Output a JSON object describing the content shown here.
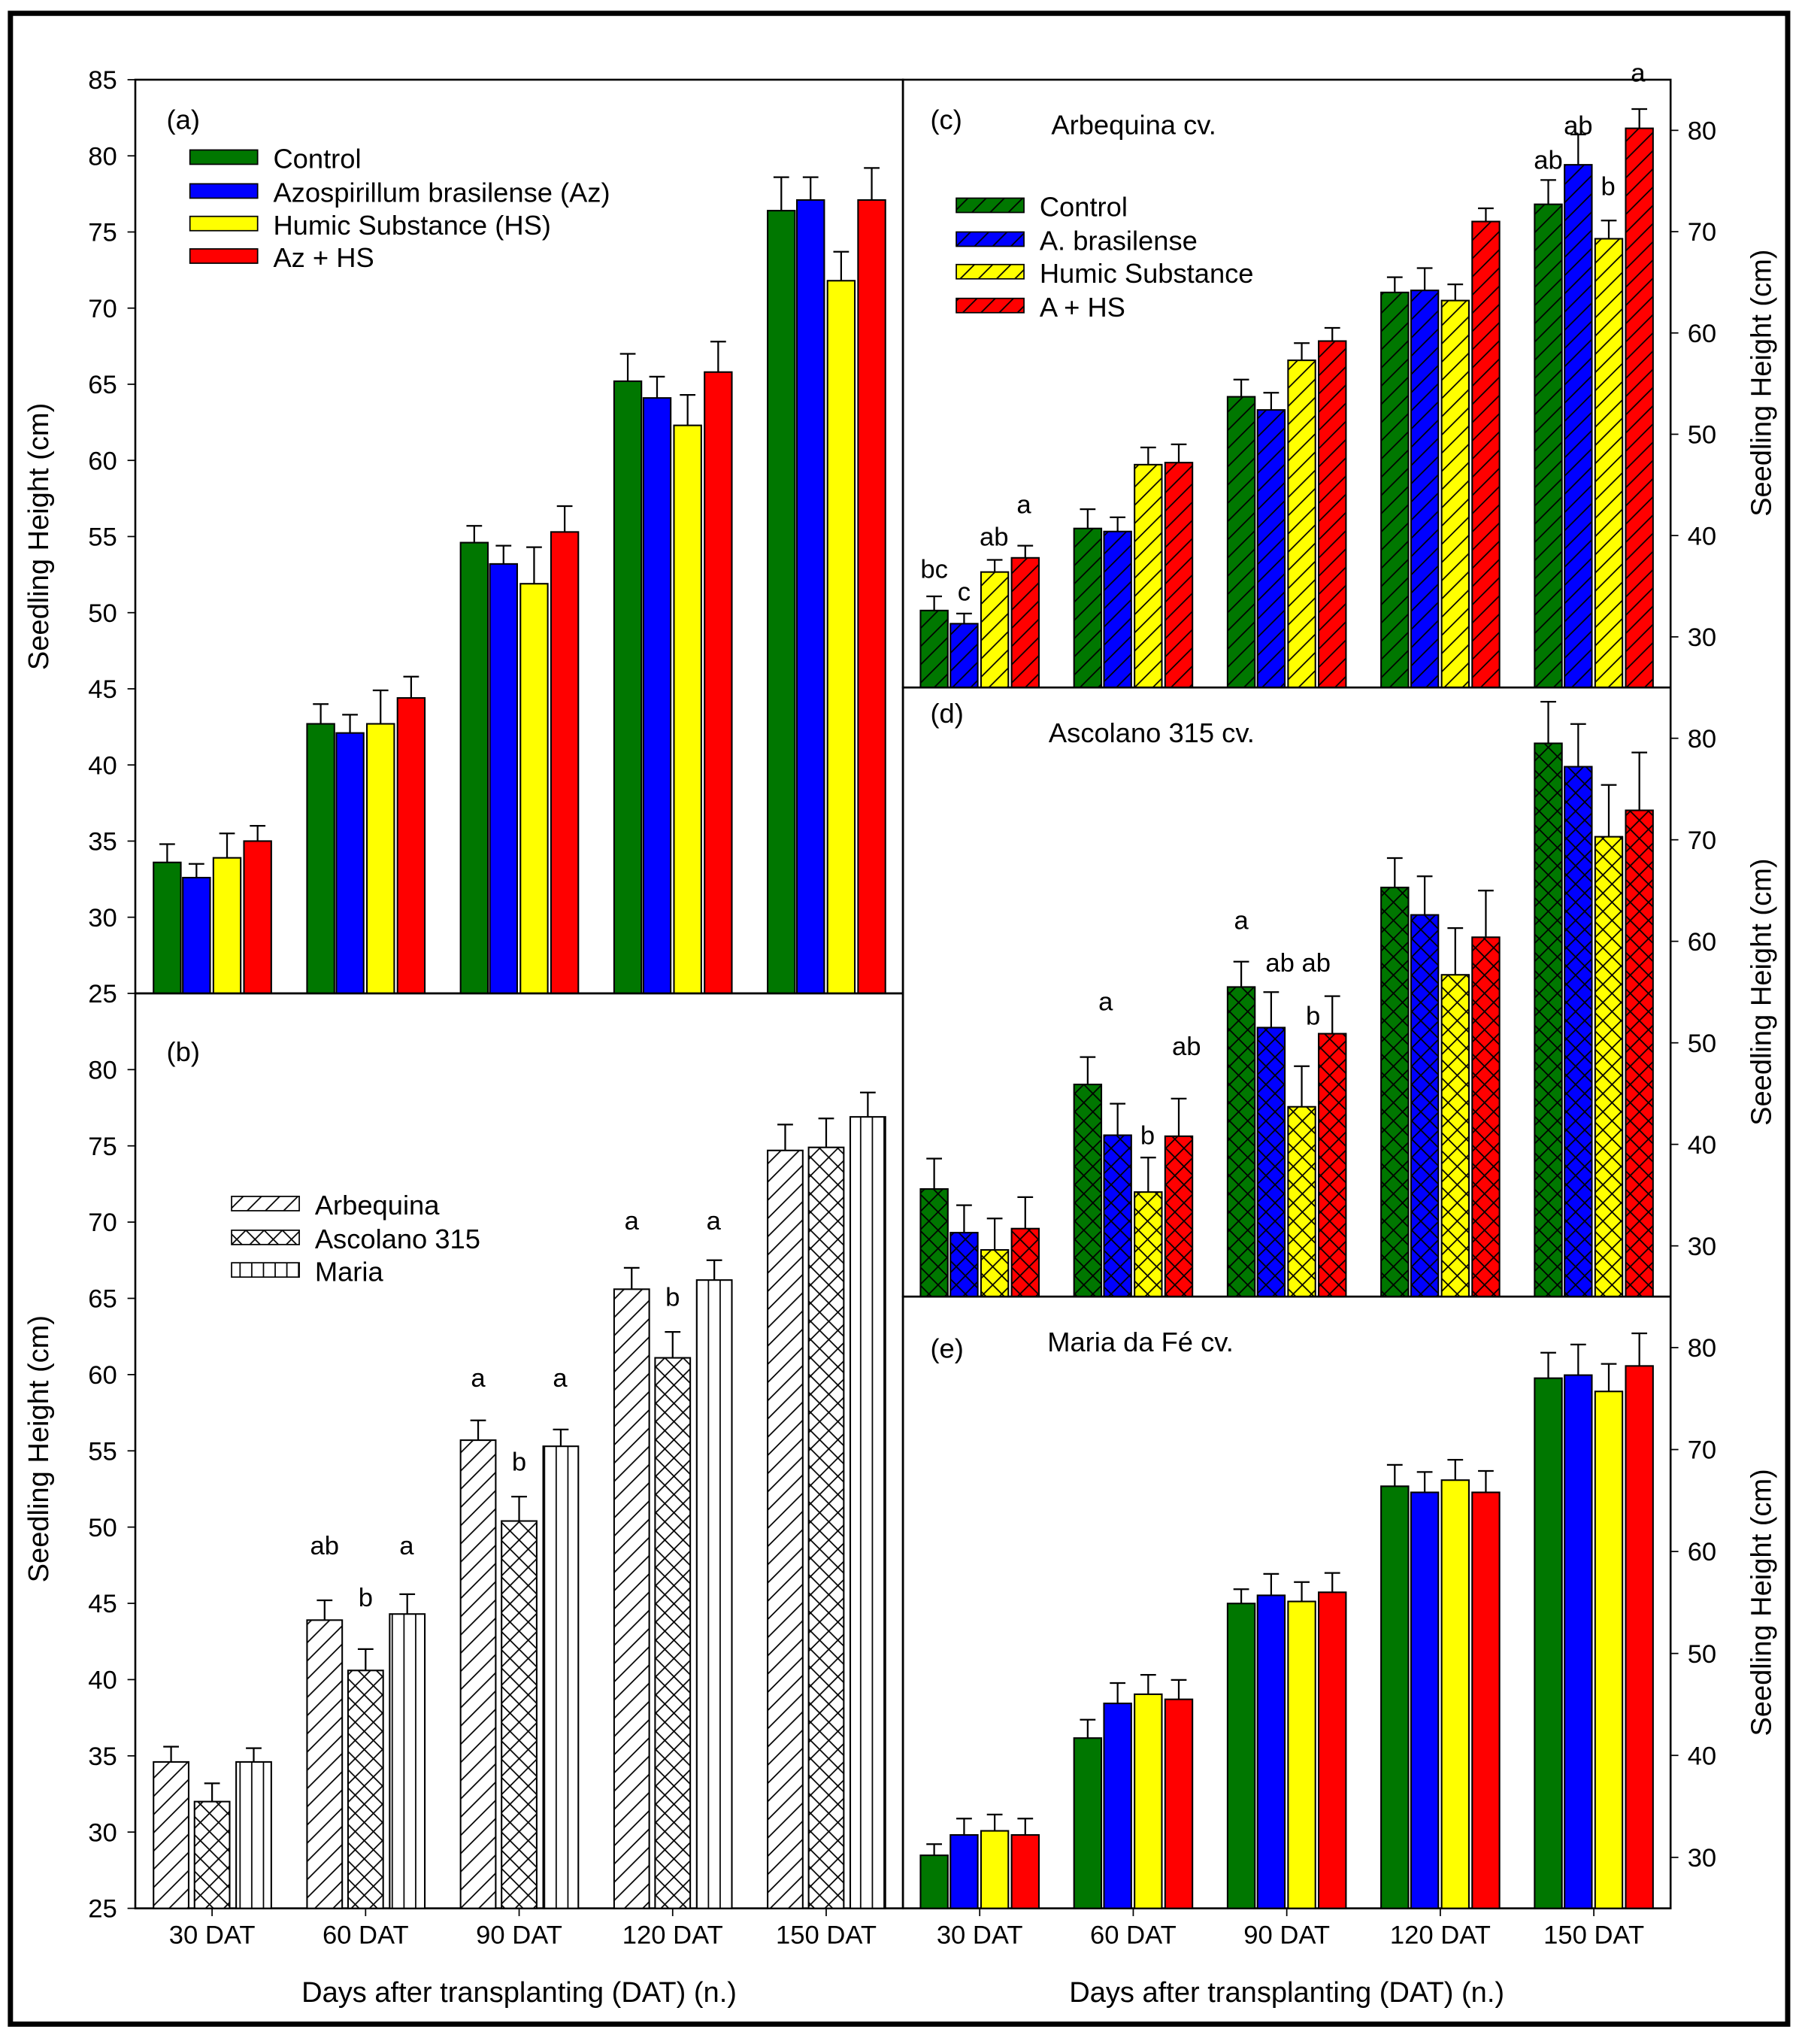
{
  "colors": {
    "control": "#007700",
    "az": "#0000ff",
    "hs": "#ffff00",
    "azhs": "#ff0000"
  },
  "x_axis_title": "Days after transplanting (DAT) (n.)",
  "y_axis_title": "Seedling Height (cm)",
  "chart_data": [
    {
      "id": "a",
      "type": "bar",
      "panel_label": "(a)",
      "title": "",
      "categories": [
        "30 DAT",
        "60 DAT",
        "90 DAT",
        "120 DAT",
        "150 DAT"
      ],
      "ylim": [
        25,
        85
      ],
      "yticks": [
        25,
        30,
        35,
        40,
        45,
        50,
        55,
        60,
        65,
        70,
        75,
        80,
        85
      ],
      "pattern": "solid",
      "ylabel": "Seedling Height (cm)",
      "series": [
        {
          "name": "Control",
          "color": "#007700",
          "values": [
            33.6,
            42.7,
            54.6,
            65.2,
            76.4
          ],
          "errors": [
            1.2,
            1.3,
            1.1,
            1.8,
            2.2
          ]
        },
        {
          "name": "Azospirillum brasilense (Az)",
          "color": "#0000ff",
          "values": [
            32.6,
            42.1,
            53.2,
            64.1,
            77.1
          ],
          "errors": [
            0.9,
            1.2,
            1.2,
            1.4,
            1.5
          ]
        },
        {
          "name": "Humic Substance (HS)",
          "color": "#ffff00",
          "values": [
            33.9,
            42.7,
            51.9,
            62.3,
            71.8
          ],
          "errors": [
            1.6,
            2.2,
            2.4,
            2.0,
            1.9
          ]
        },
        {
          "name": "Az + HS",
          "color": "#ff0000",
          "values": [
            35.0,
            44.4,
            55.3,
            65.8,
            77.1
          ],
          "errors": [
            1.0,
            1.4,
            1.7,
            2.0,
            2.1
          ]
        }
      ],
      "annotations": []
    },
    {
      "id": "b",
      "type": "bar",
      "panel_label": "(b)",
      "title": "",
      "categories": [
        "30 DAT",
        "60 DAT",
        "90 DAT",
        "120 DAT",
        "150 DAT"
      ],
      "ylim": [
        25,
        85
      ],
      "yticks": [
        25,
        30,
        35,
        40,
        45,
        50,
        55,
        60,
        65,
        70,
        75,
        80
      ],
      "pattern": "cultivar",
      "ylabel": "Seedling Height (cm)",
      "xlabel": "Days after transplanting (DAT) (n.)",
      "series": [
        {
          "name": "Arbequina",
          "color": "#ffffff",
          "hatch": "diag",
          "values": [
            34.6,
            43.9,
            55.7,
            65.6,
            74.7
          ],
          "errors": [
            1.0,
            1.3,
            1.3,
            1.4,
            1.7
          ]
        },
        {
          "name": "Ascolano 315",
          "color": "#ffffff",
          "hatch": "cross",
          "values": [
            32.0,
            40.6,
            50.4,
            61.1,
            74.9
          ],
          "errors": [
            1.2,
            1.4,
            1.6,
            1.7,
            1.9
          ]
        },
        {
          "name": "Maria",
          "color": "#ffffff",
          "hatch": "vert",
          "values": [
            34.6,
            44.3,
            55.3,
            66.2,
            76.9
          ],
          "errors": [
            0.9,
            1.3,
            1.1,
            1.3,
            1.6
          ]
        }
      ],
      "annotations": [
        {
          "group": 1,
          "bar": 0,
          "y": 48.2,
          "text": "ab"
        },
        {
          "group": 1,
          "bar": 1,
          "y": 44.8,
          "text": "b"
        },
        {
          "group": 1,
          "bar": 2,
          "y": 48.2,
          "text": "a"
        },
        {
          "group": 2,
          "bar": 0,
          "y": 59.2,
          "text": "a"
        },
        {
          "group": 2,
          "bar": 1,
          "y": 53.7,
          "text": "b"
        },
        {
          "group": 2,
          "bar": 2,
          "y": 59.2,
          "text": "a"
        },
        {
          "group": 3,
          "bar": 0,
          "y": 69.5,
          "text": "a"
        },
        {
          "group": 3,
          "bar": 1,
          "y": 64.5,
          "text": "b"
        },
        {
          "group": 3,
          "bar": 2,
          "y": 69.5,
          "text": "a"
        }
      ]
    },
    {
      "id": "c",
      "type": "bar",
      "panel_label": "(c)",
      "title": "Arbequina cv.",
      "categories": [
        "30 DAT",
        "60 DAT",
        "90 DAT",
        "120 DAT",
        "150 DAT"
      ],
      "ylim": [
        25,
        85
      ],
      "yticks": [
        30,
        40,
        50,
        60,
        70,
        80
      ],
      "pattern": "diag",
      "ylabel": "Seedling Height (cm)",
      "series": [
        {
          "name": "Control",
          "color": "#007700",
          "values": [
            32.6,
            40.7,
            53.7,
            64.0,
            72.7
          ],
          "errors": [
            1.4,
            1.9,
            1.7,
            1.5,
            2.4
          ]
        },
        {
          "name": "A. brasilense",
          "color": "#0000ff",
          "values": [
            31.3,
            40.4,
            52.4,
            64.2,
            76.6
          ],
          "errors": [
            1.0,
            1.4,
            1.7,
            2.2,
            3.0
          ]
        },
        {
          "name": "Humic Substance",
          "color": "#ffff00",
          "values": [
            36.4,
            47.0,
            57.3,
            63.2,
            69.3
          ],
          "errors": [
            1.2,
            1.7,
            1.7,
            1.6,
            1.8
          ]
        },
        {
          "name": "A + HS",
          "color": "#ff0000",
          "values": [
            37.8,
            47.2,
            59.2,
            71.0,
            80.2
          ],
          "errors": [
            1.2,
            1.8,
            1.3,
            1.3,
            1.9
          ]
        }
      ],
      "annotations": [
        {
          "group": 0,
          "bar": 0,
          "y": 35.8,
          "text": "bc"
        },
        {
          "group": 0,
          "bar": 1,
          "y": 33.6,
          "text": "c"
        },
        {
          "group": 0,
          "bar": 2,
          "y": 39.0,
          "text": "ab"
        },
        {
          "group": 0,
          "bar": 3,
          "y": 42.2,
          "text": "a"
        },
        {
          "group": 4,
          "bar": 0,
          "y": 76.2,
          "text": "ab"
        },
        {
          "group": 4,
          "bar": 1,
          "y": 79.6,
          "text": "ab"
        },
        {
          "group": 4,
          "bar": 2,
          "y": 73.6,
          "text": "b"
        },
        {
          "group": 4,
          "bar": 3,
          "y": 84.8,
          "text": "a"
        }
      ]
    },
    {
      "id": "d",
      "type": "bar",
      "panel_label": "(d)",
      "title": "Ascolano 315 cv.",
      "categories": [
        "30 DAT",
        "60 DAT",
        "90 DAT",
        "120 DAT",
        "150 DAT"
      ],
      "ylim": [
        25,
        85
      ],
      "yticks": [
        30,
        40,
        50,
        60,
        70,
        80
      ],
      "pattern": "cross",
      "ylabel": "Seedling Height (cm)",
      "series": [
        {
          "name": "Control",
          "color": "#007700",
          "values": [
            35.6,
            45.9,
            55.5,
            65.3,
            79.5
          ],
          "errors": [
            3.0,
            2.7,
            2.5,
            2.9,
            4.1
          ]
        },
        {
          "name": "A. brasilense",
          "color": "#0000ff",
          "values": [
            31.3,
            40.9,
            51.5,
            62.6,
            77.2
          ],
          "errors": [
            2.7,
            3.1,
            3.5,
            3.8,
            4.2
          ]
        },
        {
          "name": "Humic Substance",
          "color": "#ffff00",
          "values": [
            29.6,
            35.3,
            43.7,
            56.7,
            70.3
          ],
          "errors": [
            3.1,
            3.4,
            4.0,
            4.6,
            5.1
          ]
        },
        {
          "name": "A + HS",
          "color": "#ff0000",
          "values": [
            31.7,
            40.8,
            50.9,
            60.4,
            72.9
          ],
          "errors": [
            3.1,
            3.7,
            3.7,
            4.6,
            5.7
          ]
        }
      ],
      "annotations": [
        {
          "group": 1,
          "bar": 0.6,
          "y": 53.2,
          "text": "a"
        },
        {
          "group": 1,
          "bar": 2,
          "y": 40.0,
          "text": "b"
        },
        {
          "group": 1,
          "bar": 3.3,
          "y": 48.8,
          "text": "ab"
        },
        {
          "group": 2,
          "bar": 0,
          "y": 61.2,
          "text": "a"
        },
        {
          "group": 2,
          "bar": 1.9,
          "y": 57.0,
          "text": "ab ab"
        },
        {
          "group": 2,
          "bar": 2.4,
          "y": 51.8,
          "text": "b"
        }
      ]
    },
    {
      "id": "e",
      "type": "bar",
      "panel_label": "(e)",
      "title": "Maria da Fé cv.",
      "categories": [
        "30 DAT",
        "60 DAT",
        "90 DAT",
        "120 DAT",
        "150 DAT"
      ],
      "ylim": [
        25,
        85
      ],
      "yticks": [
        30,
        40,
        50,
        60,
        70,
        80
      ],
      "pattern": "solid",
      "ylabel": "Seedling Height (cm)",
      "xlabel": "Days after transplanting (DAT) (n.)",
      "series": [
        {
          "name": "Control",
          "color": "#007700",
          "values": [
            30.2,
            41.7,
            54.9,
            66.4,
            77.0
          ],
          "errors": [
            1.1,
            1.8,
            1.4,
            2.1,
            2.5
          ]
        },
        {
          "name": "A. brasilense",
          "color": "#0000ff",
          "values": [
            32.2,
            45.1,
            55.7,
            65.8,
            77.3
          ],
          "errors": [
            1.6,
            2.0,
            2.1,
            2.0,
            3.0
          ]
        },
        {
          "name": "Humic Substance",
          "color": "#ffff00",
          "values": [
            32.6,
            46.0,
            55.1,
            67.0,
            75.7
          ],
          "errors": [
            1.6,
            1.9,
            1.9,
            2.0,
            2.7
          ]
        },
        {
          "name": "A + HS",
          "color": "#ff0000",
          "values": [
            32.2,
            45.5,
            56.0,
            65.8,
            78.2
          ],
          "errors": [
            1.6,
            1.9,
            1.9,
            2.1,
            3.2
          ]
        }
      ],
      "annotations": []
    }
  ]
}
